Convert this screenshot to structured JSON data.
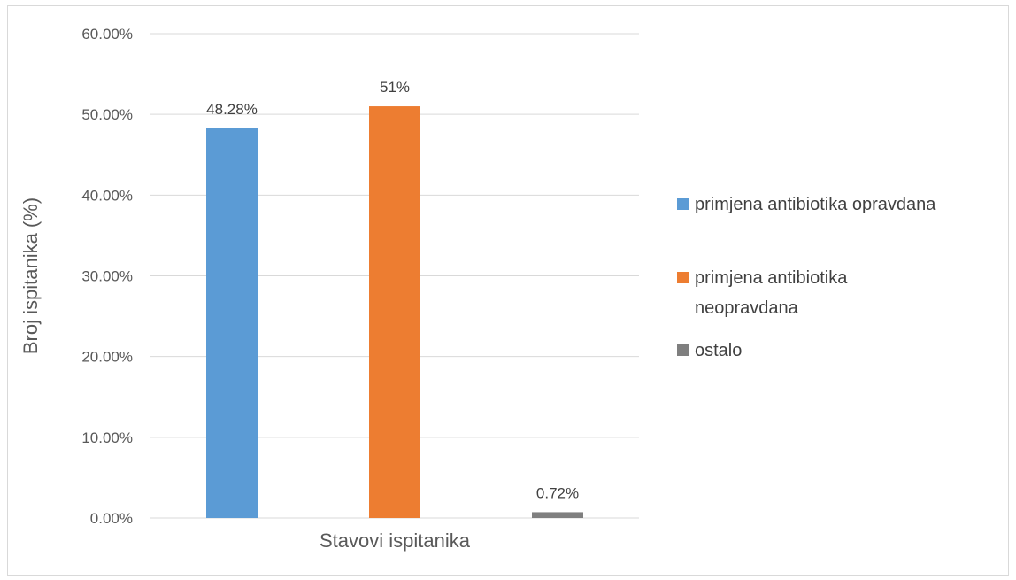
{
  "chart_data": {
    "type": "bar",
    "categories": [
      "primjena antibiotika opravdana",
      "primjena antibiotika neopravdana",
      "ostalo"
    ],
    "values": [
      48.28,
      51,
      0.72
    ],
    "data_labels": [
      "48.28%",
      "51%",
      "0.72%"
    ],
    "colors": [
      "#5b9bd5",
      "#ed7d31",
      "#7f7f7f"
    ],
    "xlabel": "Stavovi ispitanika",
    "ylabel": "Broj ispitanika (%)",
    "ylim": [
      0,
      60
    ],
    "yticks": [
      0,
      10,
      20,
      30,
      40,
      50,
      60
    ],
    "ytick_labels": [
      "0.00%",
      "10.00%",
      "20.00%",
      "30.00%",
      "40.00%",
      "50.00%",
      "60.00%"
    ],
    "grid": true,
    "legend_position": "right",
    "legend": [
      {
        "lines": [
          "primjena antibiotika opravdana"
        ],
        "color": "#5b9bd5"
      },
      {
        "lines": [
          "primjena antibiotika",
          "neopravdana"
        ],
        "color": "#ed7d31"
      },
      {
        "lines": [
          "ostalo"
        ],
        "color": "#7f7f7f"
      }
    ]
  }
}
